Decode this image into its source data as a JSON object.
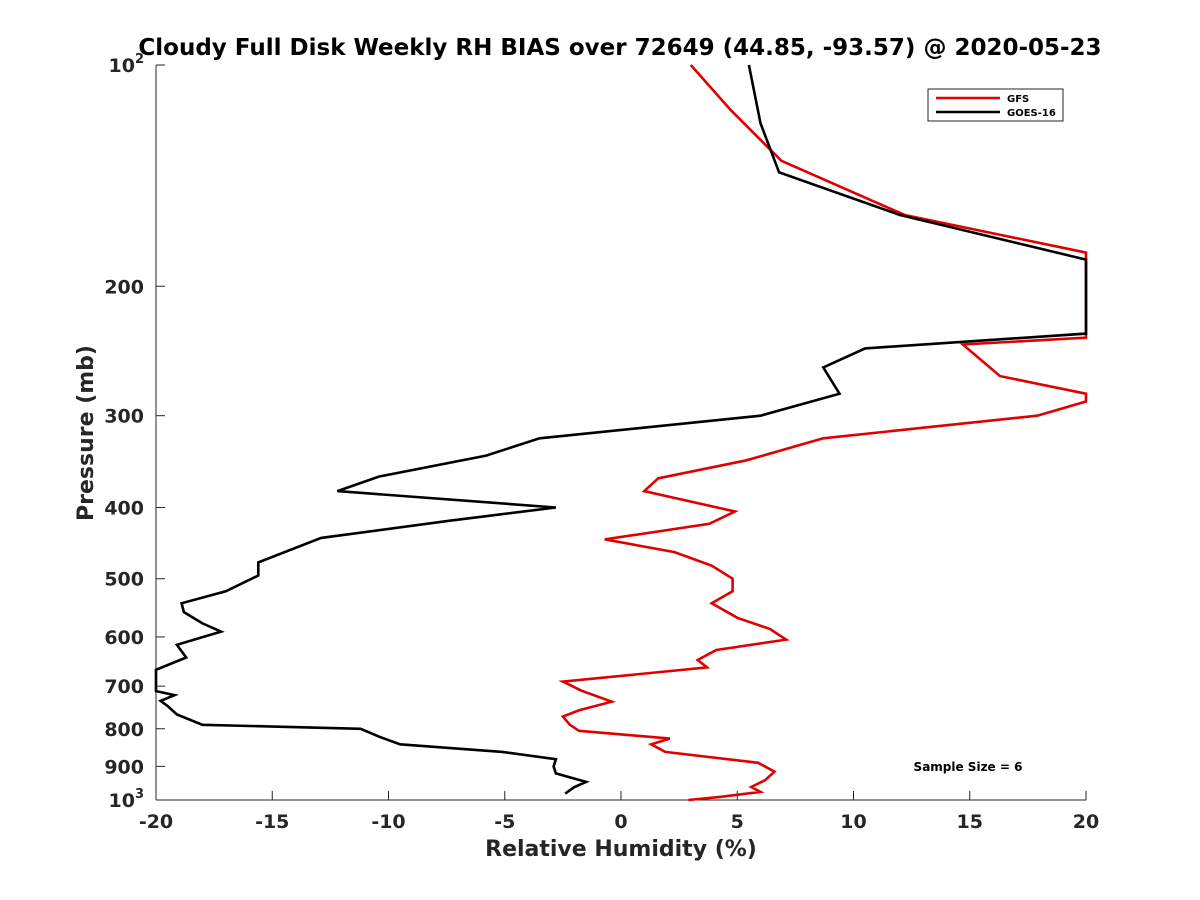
{
  "chart_data": {
    "type": "line",
    "title": "Cloudy Full Disk Weekly RH BIAS over 72649 (44.85, -93.57) @ 2020-05-23",
    "xlabel": "Relative Humidity (%)",
    "ylabel": "Pressure (mb)",
    "xlim": [
      -20,
      20
    ],
    "ylim": [
      100,
      1000
    ],
    "yscale": "log",
    "y_reversed": true,
    "xticks": [
      "-20",
      "-15",
      "-10",
      "-5",
      "0",
      "5",
      "10",
      "15",
      "20"
    ],
    "yticks": [
      {
        "value": 100,
        "base": "10",
        "exp": "2"
      },
      {
        "value": 200,
        "base": "200",
        "exp": ""
      },
      {
        "value": 300,
        "base": "300",
        "exp": ""
      },
      {
        "value": 400,
        "base": "400",
        "exp": ""
      },
      {
        "value": 500,
        "base": "500",
        "exp": ""
      },
      {
        "value": 600,
        "base": "600",
        "exp": ""
      },
      {
        "value": 700,
        "base": "700",
        "exp": ""
      },
      {
        "value": 800,
        "base": "800",
        "exp": ""
      },
      {
        "value": 900,
        "base": "900",
        "exp": ""
      },
      {
        "value": 1000,
        "base": "10",
        "exp": "3"
      }
    ],
    "grid": false,
    "legend_position": "top-right",
    "annotation": "Sample Size = 6",
    "series": [
      {
        "name": "GFS",
        "color": "#e00000",
        "points": [
          [
            3.0,
            100
          ],
          [
            4.7,
            115
          ],
          [
            6.9,
            135
          ],
          [
            12.2,
            160
          ],
          [
            20,
            180
          ],
          [
            20,
            235
          ],
          [
            14.7,
            240
          ],
          [
            16.3,
            265
          ],
          [
            20,
            280
          ],
          [
            20,
            287
          ],
          [
            17.9,
            300
          ],
          [
            8.7,
            322
          ],
          [
            5.4,
            345
          ],
          [
            1.6,
            365
          ],
          [
            1.0,
            380
          ],
          [
            4.9,
            405
          ],
          [
            3.8,
            421
          ],
          [
            -0.7,
            442
          ],
          [
            2.3,
            460
          ],
          [
            3.9,
            480
          ],
          [
            4.8,
            500
          ],
          [
            4.8,
            520
          ],
          [
            3.9,
            540
          ],
          [
            5.0,
            565
          ],
          [
            6.4,
            585
          ],
          [
            7.1,
            605
          ],
          [
            4.1,
            625
          ],
          [
            3.3,
            645
          ],
          [
            3.7,
            660
          ],
          [
            -2.5,
            690
          ],
          [
            -1.7,
            710
          ],
          [
            -0.4,
            735
          ],
          [
            -1.8,
            755
          ],
          [
            -2.5,
            770
          ],
          [
            -2.2,
            790
          ],
          [
            -1.8,
            805
          ],
          [
            2.1,
            825
          ],
          [
            1.3,
            840
          ],
          [
            1.9,
            860
          ],
          [
            5.9,
            890
          ],
          [
            6.6,
            915
          ],
          [
            6.2,
            940
          ],
          [
            5.6,
            960
          ],
          [
            6.0,
            975
          ],
          [
            4.3,
            990
          ],
          [
            2.9,
            1005
          ]
        ]
      },
      {
        "name": "GOES-16",
        "color": "#000000",
        "points": [
          [
            5.5,
            100
          ],
          [
            6.0,
            120
          ],
          [
            6.8,
            140
          ],
          [
            12.0,
            160
          ],
          [
            20,
            184
          ],
          [
            20,
            232
          ],
          [
            10.5,
            243
          ],
          [
            8.7,
            258
          ],
          [
            9.4,
            280
          ],
          [
            6.0,
            300
          ],
          [
            -3.5,
            322
          ],
          [
            -5.8,
            340
          ],
          [
            -10.4,
            363
          ],
          [
            -12.2,
            380
          ],
          [
            -2.8,
            400
          ],
          [
            -7.4,
            417
          ],
          [
            -12.9,
            440
          ],
          [
            -15.6,
            475
          ],
          [
            -15.6,
            495
          ],
          [
            -17.0,
            520
          ],
          [
            -18.9,
            540
          ],
          [
            -18.8,
            555
          ],
          [
            -18.0,
            575
          ],
          [
            -17.2,
            590
          ],
          [
            -19.1,
            615
          ],
          [
            -18.7,
            640
          ],
          [
            -20,
            665
          ],
          [
            -20,
            711
          ],
          [
            -19.2,
            720
          ],
          [
            -19.8,
            733
          ],
          [
            -19.5,
            745
          ],
          [
            -19.1,
            765
          ],
          [
            -18.0,
            790
          ],
          [
            -11.2,
            800
          ],
          [
            -10.4,
            820
          ],
          [
            -9.5,
            840
          ],
          [
            -5.1,
            860
          ],
          [
            -2.8,
            880
          ],
          [
            -2.9,
            900
          ],
          [
            -2.8,
            920
          ],
          [
            -1.5,
            945
          ],
          [
            -2.0,
            960
          ],
          [
            -2.4,
            980
          ]
        ]
      }
    ]
  }
}
